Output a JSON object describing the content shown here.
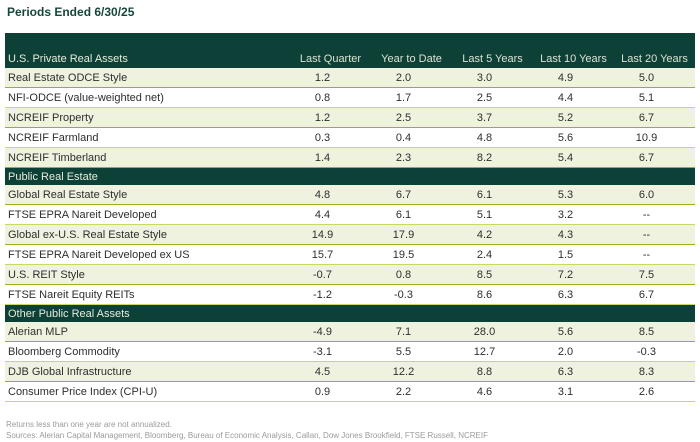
{
  "title": "Periods Ended 6/30/25",
  "table": {
    "columns": [
      "Last Quarter",
      "Year to Date",
      "Last 5 Years",
      "Last 10 Years",
      "Last 20 Years"
    ],
    "sections": [
      {
        "header": "U.S. Private Real Assets",
        "rows": [
          {
            "label": "Real Estate ODCE Style",
            "values": [
              "1.2",
              "2.0",
              "3.0",
              "4.9",
              "5.0"
            ]
          },
          {
            "label": "NFI-ODCE (value-weighted net)",
            "values": [
              "0.8",
              "1.7",
              "2.5",
              "4.4",
              "5.1"
            ]
          },
          {
            "label": "NCREIF Property",
            "values": [
              "1.2",
              "2.5",
              "3.7",
              "5.2",
              "6.7"
            ]
          },
          {
            "label": "NCREIF Farmland",
            "values": [
              "0.3",
              "0.4",
              "4.8",
              "5.6",
              "10.9"
            ]
          },
          {
            "label": "NCREIF Timberland",
            "values": [
              "1.4",
              "2.3",
              "8.2",
              "5.4",
              "6.7"
            ]
          }
        ]
      },
      {
        "header": "Public Real Estate",
        "rows": [
          {
            "label": "Global Real Estate Style",
            "values": [
              "4.8",
              "6.7",
              "6.1",
              "5.3",
              "6.0"
            ]
          },
          {
            "label": "FTSE EPRA Nareit Developed",
            "values": [
              "4.4",
              "6.1",
              "5.1",
              "3.2",
              "--"
            ]
          },
          {
            "label": "Global ex-U.S. Real Estate Style",
            "values": [
              "14.9",
              "17.9",
              "4.2",
              "4.3",
              "--"
            ]
          },
          {
            "label": "FTSE EPRA Nareit Developed ex US",
            "values": [
              "15.7",
              "19.5",
              "2.4",
              "1.5",
              "--"
            ]
          },
          {
            "label": "U.S. REIT Style",
            "values": [
              "-0.7",
              "0.8",
              "8.5",
              "7.2",
              "7.5"
            ]
          },
          {
            "label": "FTSE Nareit Equity REITs",
            "values": [
              "-1.2",
              "-0.3",
              "8.6",
              "6.3",
              "6.7"
            ]
          }
        ]
      },
      {
        "header": "Other Public Real Assets",
        "rows": [
          {
            "label": "Alerian MLP",
            "values": [
              "-4.9",
              "7.1",
              "28.0",
              "5.6",
              "8.5"
            ]
          },
          {
            "label": "Bloomberg Commodity",
            "values": [
              "-3.1",
              "5.5",
              "12.7",
              "2.0",
              "-0.3"
            ]
          },
          {
            "label": "DJB Global Infrastructure",
            "values": [
              "4.5",
              "12.2",
              "8.8",
              "6.3",
              "8.3"
            ]
          },
          {
            "label": "Consumer Price Index (CPI-U)",
            "values": [
              "0.9",
              "2.2",
              "4.6",
              "3.1",
              "2.6"
            ]
          }
        ]
      }
    ]
  },
  "footnotes": {
    "note": "Returns less than one year are not annualized.",
    "sources": "Sources: Alerian Capital Management, Bloomberg, Bureau of Economic Analysis, Callan, Dow Jones Brookfield, FTSE Russell, NCREIF"
  },
  "colors": {
    "dark_green": "#0d4036",
    "row_beige": "#f0f2e0",
    "rule_dark": "#a0af1f",
    "rule_light": "#c9d765",
    "title_green": "#16473c",
    "footnote_gray": "#9b9b9b"
  }
}
